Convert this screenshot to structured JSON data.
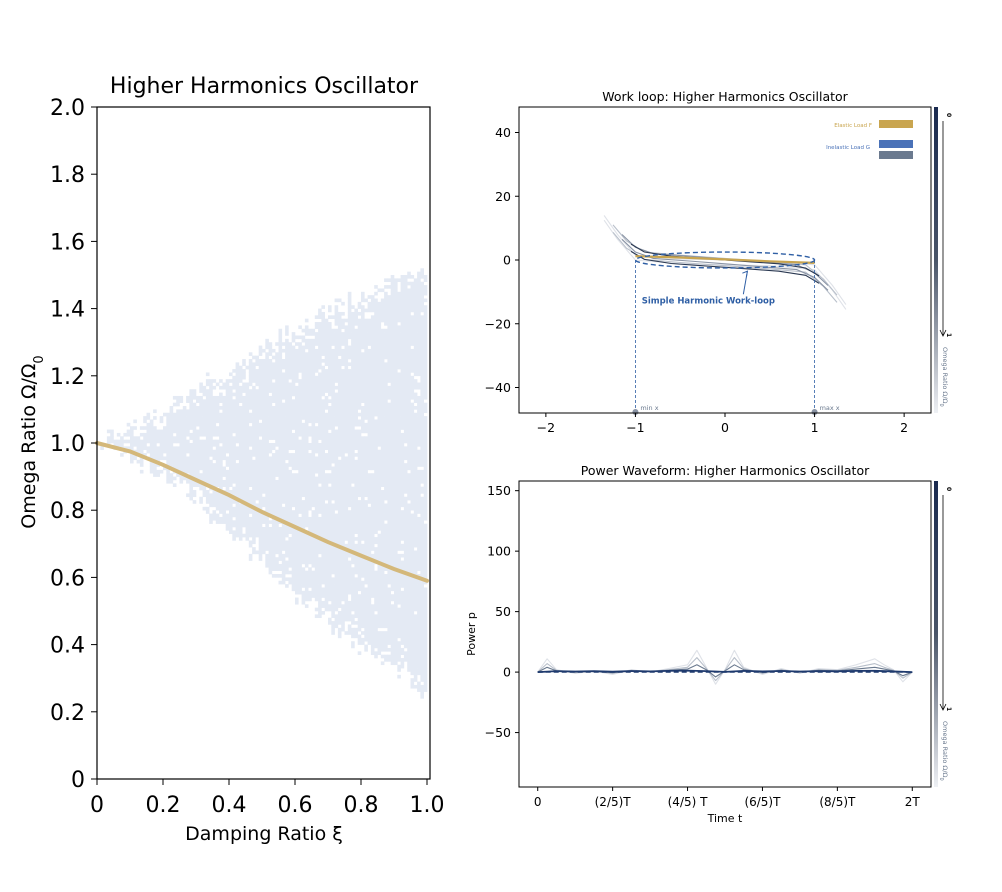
{
  "chart_data": [
    {
      "type": "heatmap",
      "title": "Higher Harmonics Oscillator",
      "xlabel": "Damping Ratio ξ",
      "ylabel": "Omega Ratio Ω/Ω",
      "ylabel_sub": "0",
      "xlim": [
        0,
        1.0
      ],
      "ylim": [
        0,
        2.0
      ],
      "x_ticks": [
        0,
        0.2,
        0.4,
        0.6,
        0.8,
        1.0
      ],
      "x_tick_labels": [
        "0",
        "0.2",
        "0.4",
        "0.6",
        "0.8",
        "1.0"
      ],
      "y_ticks": [
        0,
        0.2,
        0.4,
        0.6,
        0.8,
        1.0,
        1.2,
        1.4,
        1.6,
        1.8,
        2.0
      ],
      "y_tick_labels": [
        "0",
        "0.2",
        "0.4",
        "0.6",
        "0.8",
        "1.0",
        "1.2",
        "1.4",
        "1.6",
        "1.8",
        "2.0"
      ],
      "grid": false,
      "region": {
        "description_only": false,
        "fill_color": "#e4eaf4",
        "upper_boundary": [
          [
            0,
            1.0
          ],
          [
            0.2,
            1.1
          ],
          [
            0.4,
            1.22
          ],
          [
            0.6,
            1.34
          ],
          [
            0.8,
            1.44
          ],
          [
            1.0,
            1.53
          ]
        ],
        "lower_boundary": [
          [
            0,
            1.0
          ],
          [
            0.2,
            0.9
          ],
          [
            0.4,
            0.73
          ],
          [
            0.6,
            0.54
          ],
          [
            0.8,
            0.38
          ],
          [
            1.0,
            0.24
          ]
        ]
      },
      "curve": {
        "color": "#d4b87a",
        "x": [
          0,
          0.1,
          0.2,
          0.3,
          0.4,
          0.5,
          0.6,
          0.7,
          0.8,
          0.9,
          1.0
        ],
        "y": [
          1.0,
          0.975,
          0.935,
          0.89,
          0.845,
          0.795,
          0.75,
          0.705,
          0.665,
          0.625,
          0.59
        ]
      }
    },
    {
      "type": "line",
      "title": "Work loop: Higher Harmonics Oscillator",
      "xlim": [
        -2.3,
        2.3
      ],
      "ylim": [
        -48,
        48
      ],
      "x_ticks": [
        -2,
        -1,
        0,
        1,
        2
      ],
      "x_tick_labels": [
        "−2",
        "−1",
        "0",
        "1",
        "2"
      ],
      "y_ticks": [
        -40,
        -20,
        0,
        20,
        40
      ],
      "y_tick_labels": [
        "−40",
        "−20",
        "0",
        "20",
        "40"
      ],
      "grid": false,
      "legend": {
        "placement": "top-right",
        "entries": [
          {
            "label": "Elastic Load F",
            "colors": [
              "#c9a54f"
            ]
          },
          {
            "label": "Inelastic Load G",
            "colors": [
              "#4a72b8",
              "#6b7a8f"
            ]
          }
        ]
      },
      "annotation": {
        "text": "Simple Harmonic Work-loop",
        "x": -0.8,
        "y": -12,
        "arrow_to": [
          0.25,
          -3.5
        ]
      },
      "markers": [
        {
          "label": "min x",
          "x": -1
        },
        {
          "label": "max x",
          "x": 1
        }
      ],
      "simple_loop": {
        "x_center": 0,
        "half_width": 1.0,
        "y_top": 2.5,
        "y_bottom": -2.5,
        "color": "#2f5fa5"
      },
      "series": [
        {
          "x": [
            -1.35,
            -1.2,
            -1.0,
            -0.5,
            0,
            0.5,
            1.0,
            1.2,
            1.35
          ],
          "y": [
            14,
            8,
            1.5,
            0.3,
            0,
            -0.3,
            -1.5,
            -8,
            -14
          ],
          "color": "#dfe2e8"
        },
        {
          "x": [
            -1.25,
            -1.1,
            -0.9,
            -0.5,
            0,
            0.5,
            0.9,
            1.1,
            1.25
          ],
          "y": [
            11,
            6,
            2.5,
            1.5,
            0.5,
            -0.5,
            -1.5,
            -6,
            -11
          ],
          "color": "#b9c0cb"
        },
        {
          "x": [
            -1.15,
            -1.0,
            -0.8,
            -0.4,
            0,
            0.4,
            0.8,
            1.0,
            1.15
          ],
          "y": [
            8,
            4,
            2,
            1.2,
            0.3,
            -0.6,
            -1.5,
            -4,
            -8
          ],
          "color": "#8a94a5"
        },
        {
          "x": [
            -1.05,
            -0.9,
            -0.6,
            -0.3,
            0,
            0.3,
            0.6,
            0.9,
            1.05
          ],
          "y": [
            5,
            2.5,
            1.2,
            0.6,
            0,
            -0.6,
            -1.2,
            -2.5,
            -5
          ],
          "color": "#2b3952"
        }
      ],
      "elastic_line": {
        "x": [
          -1,
          -0.5,
          0,
          0.5,
          1
        ],
        "y": [
          1.2,
          0.8,
          0.2,
          -0.4,
          -0.9
        ],
        "color": "#c9a54f"
      },
      "colorbar": {
        "top_label": "0",
        "bottom_label": "1",
        "label": "Omega Ratio Ω/Ω",
        "label_sub": "0"
      }
    },
    {
      "type": "line",
      "title": "Power Waveform: Higher Harmonics Oscillator",
      "xlabel": "Time t",
      "ylabel": "Power p",
      "xlim": [
        -0.1,
        2.1
      ],
      "ylim": [
        -95,
        158
      ],
      "x_ticks": [
        0,
        0.4,
        0.8,
        1.2,
        1.6,
        2.0
      ],
      "x_tick_labels": [
        "0",
        "(2/5)T",
        "(4/5) T",
        "(6/5)T",
        "(8/5)T",
        "2T"
      ],
      "y_ticks": [
        -50,
        0,
        50,
        100,
        150
      ],
      "y_tick_labels": [
        "−50",
        "0",
        "50",
        "100",
        "150"
      ],
      "grid": false,
      "series": [
        {
          "x": [
            0,
            0.05,
            0.1,
            0.2,
            0.3,
            0.4,
            0.5,
            0.6,
            0.7,
            0.8,
            0.85,
            0.9,
            0.95,
            1.0,
            1.05,
            1.1,
            1.2,
            1.3,
            1.4,
            1.5,
            1.6,
            1.7,
            1.8,
            1.85,
            1.9,
            1.95,
            2.0
          ],
          "y": [
            0,
            11,
            2,
            -1,
            1,
            -2,
            2,
            0,
            3,
            6,
            18,
            4,
            -10,
            2,
            18,
            4,
            -2,
            3,
            -1,
            3,
            2,
            6,
            11,
            6,
            2,
            -8,
            0
          ],
          "color": "#dfe2e8"
        },
        {
          "x": [
            0,
            0.05,
            0.1,
            0.2,
            0.3,
            0.4,
            0.5,
            0.6,
            0.7,
            0.8,
            0.85,
            0.9,
            0.95,
            1.0,
            1.05,
            1.1,
            1.2,
            1.3,
            1.4,
            1.5,
            1.6,
            1.7,
            1.8,
            1.85,
            1.9,
            1.95,
            2.0
          ],
          "y": [
            0,
            7,
            1.5,
            -0.5,
            0.8,
            -1,
            1.5,
            0.5,
            2,
            4,
            12,
            3,
            -7,
            1.5,
            12,
            3,
            -1,
            2,
            -0.5,
            2,
            1.5,
            4,
            7,
            4,
            1.5,
            -5,
            0
          ],
          "color": "#b9c0cb"
        },
        {
          "x": [
            0,
            0.05,
            0.1,
            0.2,
            0.3,
            0.4,
            0.5,
            0.6,
            0.7,
            0.8,
            0.85,
            0.9,
            0.95,
            1.0,
            1.05,
            1.1,
            1.2,
            1.3,
            1.4,
            1.5,
            1.6,
            1.7,
            1.8,
            1.85,
            1.9,
            1.95,
            2.0
          ],
          "y": [
            0,
            4,
            1,
            0,
            0.5,
            -0.5,
            1,
            0.5,
            1.5,
            2.5,
            6,
            2,
            -4,
            1,
            6,
            2,
            -0.5,
            1.5,
            0,
            1.5,
            1,
            2.5,
            4,
            2.5,
            1,
            -3,
            0
          ],
          "color": "#6b7a8f"
        },
        {
          "x": [
            0,
            0.1,
            0.2,
            0.3,
            0.4,
            0.5,
            0.6,
            0.7,
            0.8,
            0.9,
            1.0,
            1.1,
            1.2,
            1.3,
            1.4,
            1.5,
            1.6,
            1.7,
            1.8,
            1.9,
            2.0
          ],
          "y": [
            0,
            0.8,
            0.5,
            0.8,
            0.3,
            0.9,
            0.6,
            1.0,
            1.2,
            0.8,
            0.2,
            1.0,
            0.6,
            0.9,
            0.5,
            0.8,
            0.7,
            1.0,
            1.1,
            0.6,
            0
          ],
          "color": "#1f3a6e"
        }
      ],
      "dashed_line": {
        "x": [
          0,
          2.0
        ],
        "y": [
          0,
          0
        ],
        "color": "#1f3a6e"
      },
      "colorbar": {
        "top_label": "0",
        "bottom_label": "1",
        "label": "Omega Ratio Ω/Ω",
        "label_sub": "0"
      }
    }
  ]
}
